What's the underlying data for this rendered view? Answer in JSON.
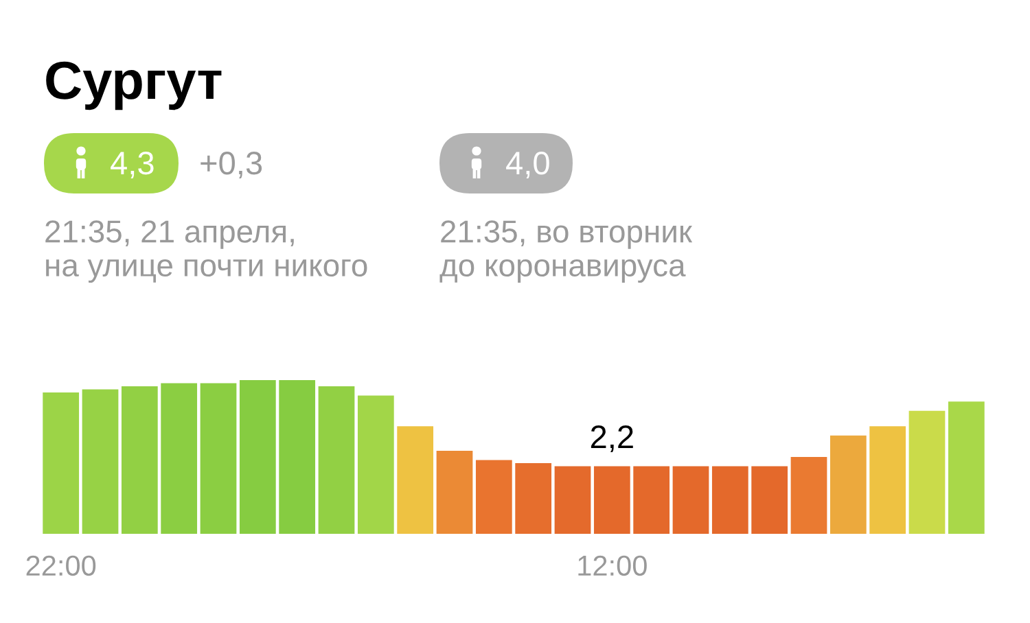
{
  "chart_data": {
    "type": "bar",
    "title": "Сургут",
    "annotations": [
      "4,3",
      "+0,3",
      "21:35, 21 апреля,\nна улице почти никого",
      "4,0",
      "21:35, во вторник\nдо коронавируса"
    ],
    "categories": [
      "22:00",
      null,
      null,
      null,
      null,
      null,
      null,
      null,
      null,
      null,
      null,
      null,
      null,
      null,
      "12:00",
      null,
      null,
      null,
      null,
      null,
      null,
      null,
      null,
      null
    ],
    "values": [
      4.6,
      4.7,
      4.8,
      4.9,
      4.9,
      5.0,
      5.0,
      4.8,
      4.5,
      3.5,
      2.7,
      2.4,
      2.3,
      2.2,
      2.2,
      2.2,
      2.2,
      2.2,
      2.2,
      2.5,
      3.2,
      3.5,
      4.0,
      4.3
    ],
    "colors": [
      "#9cd447",
      "#97d245",
      "#92d044",
      "#8bce42",
      "#8bce42",
      "#86cc41",
      "#86cc41",
      "#92d044",
      "#a2d648",
      "#eec242",
      "#eb8a35",
      "#e9742f",
      "#e66e2d",
      "#e46a2c",
      "#e4692b",
      "#e4692b",
      "#e4692b",
      "#e4692b",
      "#e4692b",
      "#ea7a31",
      "#eca93d",
      "#eec242",
      "#cadb4a",
      "#a9d849"
    ],
    "value_labels": [
      null,
      null,
      null,
      null,
      null,
      null,
      null,
      null,
      null,
      null,
      null,
      null,
      null,
      null,
      "2,2",
      null,
      null,
      null,
      null,
      null,
      null,
      null,
      null,
      null
    ],
    "tick_labels": "x"
  }
}
